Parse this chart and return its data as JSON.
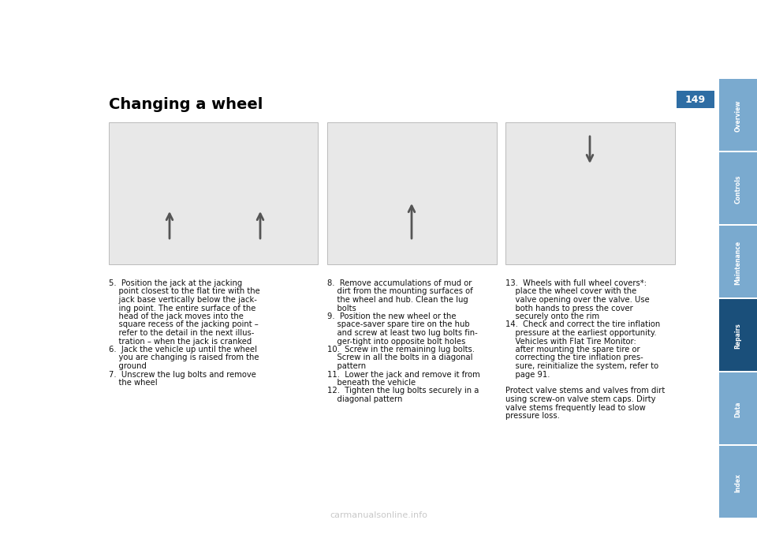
{
  "page_bg": "#ffffff",
  "page_number": "149",
  "title": "Changing a wheel",
  "title_fontsize": 14,
  "title_font": "bold",
  "sidebar_color": "#2e6da4",
  "sidebar_active_color": "#1a4f7a",
  "sidebar_inactive_color": "#7aaacf",
  "sidebar_labels": [
    "Overview",
    "Controls",
    "Maintenance",
    "Repairs",
    "Data",
    "Index"
  ],
  "sidebar_active": "Repairs",
  "page_number_box_color": "#2e6da4",
  "img1_gray": "#e8e8e8",
  "img2_gray": "#e8e8e8",
  "img3_gray": "#e8e8e8",
  "img_border": "#bbbbbb",
  "text_fontsize": 7.2,
  "text_color": "#111111",
  "col1_lines": [
    "5.  Position the jack at the jacking",
    "    point closest to the flat tire with the",
    "    jack base vertically below the jack-",
    "    ing point. The entire surface of the",
    "    head of the jack moves into the",
    "    square recess of the jacking point –",
    "    refer to the detail in the next illus-",
    "    tration – when the jack is cranked",
    "6.  Jack the vehicle up until the wheel",
    "    you are changing is raised from the",
    "    ground",
    "7.  Unscrew the lug bolts and remove",
    "    the wheel"
  ],
  "col2_lines": [
    "8.  Remove accumulations of mud or",
    "    dirt from the mounting surfaces of",
    "    the wheel and hub. Clean the lug",
    "    bolts",
    "9.  Position the new wheel or the",
    "    space-saver spare tire on the hub",
    "    and screw at least two lug bolts fin-",
    "    ger-tight into opposite bolt holes",
    "10.  Screw in the remaining lug bolts.",
    "    Screw in all the bolts in a diagonal",
    "    pattern",
    "11.  Lower the jack and remove it from",
    "    beneath the vehicle",
    "12.  Tighten the lug bolts securely in a",
    "    diagonal pattern"
  ],
  "col3_lines": [
    "13.  Wheels with full wheel covers*:",
    "    place the wheel cover with the",
    "    valve opening over the valve. Use",
    "    both hands to press the cover",
    "    securely onto the rim",
    "14.  Check and correct the tire inflation",
    "    pressure at the earliest opportunity.",
    "    Vehicles with Flat Tire Monitor:",
    "    after mounting the spare tire or",
    "    correcting the tire inflation pres-",
    "    sure, reinitialize the system, refer to",
    "    page 91.",
    "",
    "Protect valve stems and valves from dirt",
    "using screw-on valve stem caps. Dirty",
    "valve stems frequently lead to slow",
    "pressure loss."
  ],
  "watermark_text": "carmanualsonline.info",
  "watermark_color": "#bbbbbb",
  "watermark_fontsize": 8
}
